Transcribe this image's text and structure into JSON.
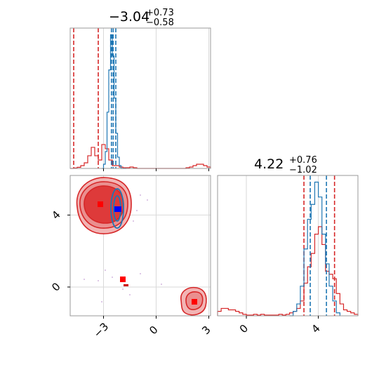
{
  "chart_data": [
    {
      "type": "area",
      "panel": "top-left marginal histogram",
      "title": {
        "median": "−3.04",
        "plus": "+0.73",
        "minus": "−0.58"
      },
      "xlim": [
        -4.9,
        3.1
      ],
      "xticks": [
        -3,
        0,
        3
      ],
      "grid": true,
      "series": [
        {
          "color": "#d62728",
          "step_x": [
            -4.9,
            -4.7,
            -4.5,
            -4.3,
            -4.1,
            -3.9,
            -3.7,
            -3.5,
            -3.3,
            -3.1,
            -2.9,
            -2.7,
            -2.5,
            -2.3,
            -2.1,
            -1.9,
            -1.7,
            -1.5,
            -1.3,
            -1.1,
            -0.9,
            -0.7,
            -0.5,
            -0.3,
            -0.1,
            0.1,
            0.3,
            0.5,
            0.7,
            0.9,
            1.1,
            1.3,
            1.5,
            1.7,
            1.9,
            2.1,
            2.3,
            2.5,
            2.7,
            2.9,
            3.1
          ],
          "step_y": [
            0,
            0.003,
            0.008,
            0.02,
            0.04,
            0.09,
            0.15,
            0.09,
            0.06,
            0.17,
            0.14,
            0.06,
            0.02,
            0.02,
            0.01,
            0.005,
            0.005,
            0.01,
            0.005,
            0.0,
            0.0,
            0.0,
            0.0,
            0.0,
            0.0,
            0.0,
            0.0,
            0.0,
            0.0,
            0.0,
            0.0,
            0.0,
            0.0,
            0.005,
            0.01,
            0.02,
            0.03,
            0.03,
            0.02,
            0.01
          ],
          "quantile_lines": [
            -4.7,
            -3.3
          ]
        },
        {
          "color": "#1f77b4",
          "step_x": [
            -3.1,
            -3.0,
            -2.9,
            -2.8,
            -2.7,
            -2.6,
            -2.5,
            -2.4,
            -2.3,
            -2.2,
            -2.1,
            -2.0,
            -1.9,
            -1.8,
            -1.7
          ],
          "step_y": [
            0,
            0.03,
            0.12,
            0.4,
            0.7,
            0.95,
            0.8,
            0.5,
            0.25,
            0.08,
            0.02,
            0.0,
            0.0,
            0.0
          ],
          "quantile_lines": [
            -2.55,
            -2.45,
            -2.3
          ]
        }
      ]
    },
    {
      "type": "heatmap",
      "panel": "bottom-left 2D contour",
      "xlim": [
        -4.9,
        3.1
      ],
      "ylim": [
        -1.6,
        6.2
      ],
      "xticks": [
        -3,
        0,
        3
      ],
      "yticks": [
        0,
        4
      ],
      "grid": true,
      "red_truth_markers": [
        [
          -2.9,
          4.2
        ],
        [
          -2.1,
          0.7
        ],
        [
          2.3,
          -0.3
        ]
      ],
      "blue_truth_marker": [
        -2.45,
        4.0
      ]
    },
    {
      "type": "area",
      "panel": "bottom-right marginal histogram",
      "title": {
        "median": "4.22",
        "plus": "+0.76",
        "minus": "−1.02"
      },
      "xlim": [
        -1.6,
        6.2
      ],
      "xticks": [
        0,
        4
      ],
      "grid": true,
      "series": [
        {
          "color": "#d62728",
          "step_x": [
            -1.6,
            -1.4,
            -1.2,
            -1.0,
            -0.8,
            -0.6,
            -0.4,
            -0.2,
            0.0,
            0.2,
            0.4,
            0.6,
            0.8,
            1.0,
            1.2,
            1.4,
            1.6,
            1.8,
            2.0,
            2.2,
            2.4,
            2.6,
            2.8,
            3.0,
            3.2,
            3.4,
            3.6,
            3.8,
            4.0,
            4.2,
            4.4,
            4.6,
            4.8,
            5.0,
            5.2,
            5.4,
            5.6,
            5.8,
            6.0,
            6.2
          ],
          "step_y": [
            0.03,
            0.05,
            0.05,
            0.04,
            0.04,
            0.03,
            0.02,
            0.01,
            0.005,
            0.005,
            0.01,
            0.005,
            0.01,
            0.005,
            0.005,
            0.005,
            0.005,
            0.01,
            0.005,
            0.01,
            0.02,
            0.03,
            0.05,
            0.1,
            0.22,
            0.33,
            0.42,
            0.55,
            0.6,
            0.48,
            0.3,
            0.28,
            0.25,
            0.15,
            0.08,
            0.04,
            0.03,
            0.02,
            0.01
          ],
          "quantile_lines": [
            3.2,
            4.9
          ]
        },
        {
          "color": "#1f77b4",
          "step_x": [
            2.4,
            2.6,
            2.8,
            3.0,
            3.2,
            3.4,
            3.6,
            3.8,
            4.0,
            4.2,
            4.4,
            4.6,
            4.8,
            5.0,
            5.2
          ],
          "step_y": [
            0.0,
            0.03,
            0.08,
            0.2,
            0.45,
            0.65,
            0.75,
            0.9,
            0.8,
            0.55,
            0.35,
            0.2,
            0.1,
            0.02
          ],
          "quantile_lines": [
            3.55,
            4.45
          ]
        }
      ]
    }
  ]
}
